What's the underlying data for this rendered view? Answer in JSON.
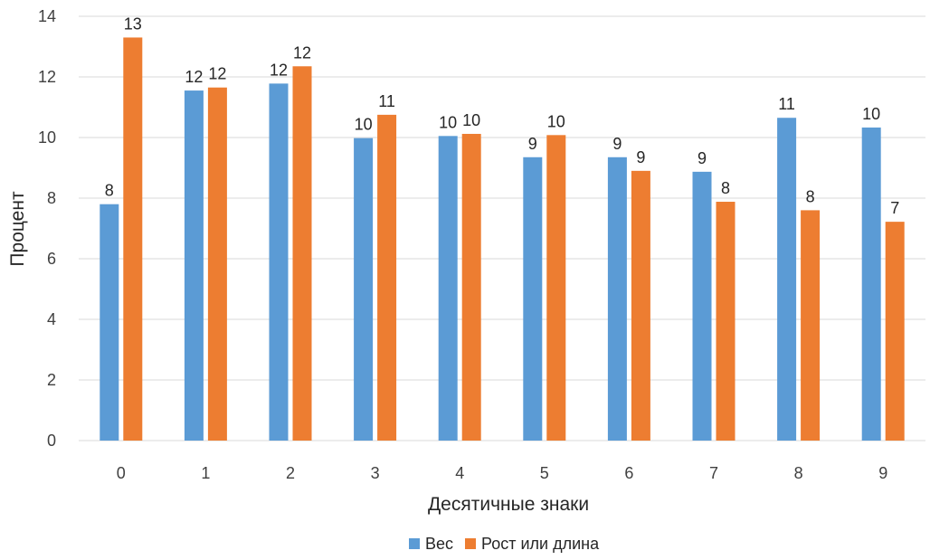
{
  "chart_data": {
    "type": "bar",
    "title": "",
    "xlabel": "Десятичные знаки",
    "ylabel": "Процент",
    "ylim": [
      0,
      14
    ],
    "yticks": [
      0,
      2,
      4,
      6,
      8,
      10,
      12,
      14
    ],
    "grid": true,
    "legend_position": "bottom",
    "categories": [
      "0",
      "1",
      "2",
      "3",
      "4",
      "5",
      "6",
      "7",
      "8",
      "9"
    ],
    "series": [
      {
        "name": "Вес",
        "color": "#5B9BD5",
        "values": [
          7.8,
          11.55,
          11.78,
          9.98,
          10.05,
          9.35,
          9.35,
          8.87,
          10.65,
          10.33
        ],
        "labels": [
          "8",
          "12",
          "12",
          "10",
          "10",
          "9",
          "9",
          "9",
          "11",
          "10"
        ]
      },
      {
        "name": "Рост или длина",
        "color": "#ED7D31",
        "values": [
          13.3,
          11.65,
          12.35,
          10.75,
          10.12,
          10.08,
          8.9,
          7.88,
          7.6,
          7.22
        ],
        "labels": [
          "13",
          "12",
          "12",
          "11",
          "10",
          "10",
          "9",
          "8",
          "8",
          "7"
        ]
      }
    ]
  }
}
